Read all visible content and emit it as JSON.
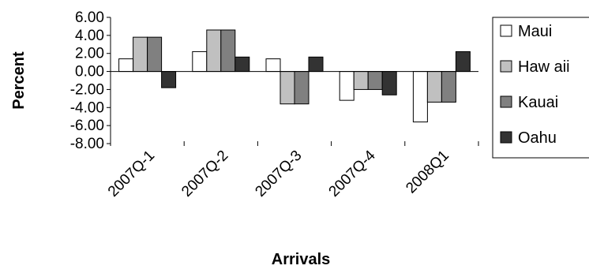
{
  "chart_data": {
    "type": "bar",
    "xlabel": "Arrivals",
    "ylabel": "Percent",
    "categories": [
      "2007Q-1",
      "2007Q-2",
      "2007Q-3",
      "2007Q-4",
      "2008Q1"
    ],
    "ylim": [
      -8,
      6
    ],
    "yticks": [
      "6.00",
      "4.00",
      "2.00",
      "0.00",
      "-2.00",
      "-4.00",
      "-6.00",
      "-8.00"
    ],
    "grid": false,
    "legend_position": "right",
    "series": [
      {
        "name": "Maui",
        "values": [
          1.4,
          2.2,
          1.4,
          -3.2,
          -5.6
        ],
        "color": "#ffffff"
      },
      {
        "name": "Haw aii",
        "values": [
          3.8,
          4.6,
          -3.6,
          -2.0,
          -3.4
        ],
        "color": "#c0c0c0"
      },
      {
        "name": "Kauai",
        "values": [
          3.8,
          4.6,
          -3.6,
          -2.0,
          -3.4
        ],
        "color": "#808080"
      },
      {
        "name": "Oahu",
        "values": [
          -1.8,
          1.6,
          1.6,
          -2.6,
          2.2
        ],
        "color": "#333333"
      }
    ]
  }
}
